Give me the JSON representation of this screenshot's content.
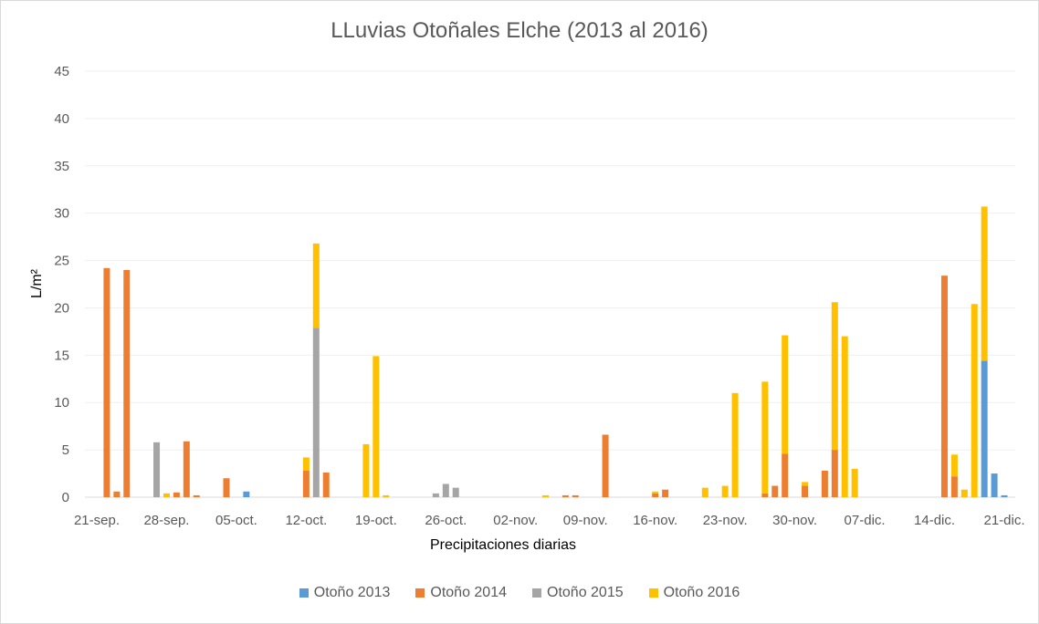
{
  "chart_data": {
    "type": "bar",
    "stacked": true,
    "title": "LLuvias Otoñales Elche (2013 al 2016)",
    "xlabel": "Precipitaciones diarias",
    "ylabel": "L/m²",
    "ylim": [
      0,
      45
    ],
    "yticks": [
      0,
      5,
      10,
      15,
      20,
      25,
      30,
      35,
      40,
      45
    ],
    "grid": true,
    "legend_position": "bottom",
    "x_tick_labels": [
      "21-sep.",
      "28-sep.",
      "05-oct.",
      "12-oct.",
      "19-oct.",
      "26-oct.",
      "02-nov.",
      "09-nov.",
      "16-nov.",
      "23-nov.",
      "30-nov.",
      "07-dic.",
      "14-dic.",
      "21-dic."
    ],
    "x_start": "21-sep.",
    "x_end": "21-dic.",
    "series": [
      {
        "name": "Otoño 2013",
        "color": "#5b9bd5",
        "points": [
          [
            "06-oct.",
            0.6
          ],
          [
            "19-dic.",
            14.4
          ],
          [
            "20-dic.",
            2.5
          ],
          [
            "21-dic.",
            0.2
          ]
        ]
      },
      {
        "name": "Otoño 2014",
        "color": "#ed7d31",
        "points": [
          [
            "22-sep.",
            24.2
          ],
          [
            "23-sep.",
            0.6
          ],
          [
            "24-sep.",
            24.0
          ],
          [
            "29-sep.",
            0.5
          ],
          [
            "30-sep.",
            5.9
          ],
          [
            "01-oct.",
            0.2
          ],
          [
            "04-oct.",
            2.0
          ],
          [
            "12-oct.",
            2.8
          ],
          [
            "14-oct.",
            2.6
          ],
          [
            "07-nov.",
            0.2
          ],
          [
            "08-nov.",
            0.2
          ],
          [
            "11-nov.",
            6.6
          ],
          [
            "16-nov.",
            0.4
          ],
          [
            "17-nov.",
            0.8
          ],
          [
            "27-nov.",
            0.4
          ],
          [
            "28-nov.",
            1.2
          ],
          [
            "29-nov.",
            4.6
          ],
          [
            "01-dic.",
            1.2
          ],
          [
            "03-dic.",
            2.8
          ],
          [
            "04-dic.",
            5.0
          ],
          [
            "15-dic.",
            23.4
          ],
          [
            "16-dic.",
            2.2
          ]
        ]
      },
      {
        "name": "Otoño 2015",
        "color": "#a5a5a5",
        "points": [
          [
            "27-sep.",
            5.8
          ],
          [
            "13-oct.",
            17.9
          ],
          [
            "25-oct.",
            0.4
          ],
          [
            "26-oct.",
            1.4
          ],
          [
            "27-oct.",
            1.0
          ]
        ]
      },
      {
        "name": "Otoño 2016",
        "color": "#ffc000",
        "points": [
          [
            "28-sep.",
            0.4
          ],
          [
            "12-oct.",
            1.4
          ],
          [
            "13-oct.",
            8.9
          ],
          [
            "18-oct.",
            5.6
          ],
          [
            "19-oct.",
            14.9
          ],
          [
            "20-oct.",
            0.2
          ],
          [
            "05-nov.",
            0.2
          ],
          [
            "16-nov.",
            0.2
          ],
          [
            "21-nov.",
            1.0
          ],
          [
            "23-nov.",
            1.2
          ],
          [
            "24-nov.",
            11.0
          ],
          [
            "27-nov.",
            11.8
          ],
          [
            "29-nov.",
            12.5
          ],
          [
            "01-dic.",
            0.4
          ],
          [
            "04-dic.",
            15.6
          ],
          [
            "05-dic.",
            17.0
          ],
          [
            "06-dic.",
            3.0
          ],
          [
            "16-dic.",
            2.3
          ],
          [
            "17-dic.",
            0.8
          ],
          [
            "18-dic.",
            20.4
          ],
          [
            "19-dic.",
            16.3
          ],
          [
            "19-dic. (2)",
            0
          ]
        ]
      }
    ]
  }
}
